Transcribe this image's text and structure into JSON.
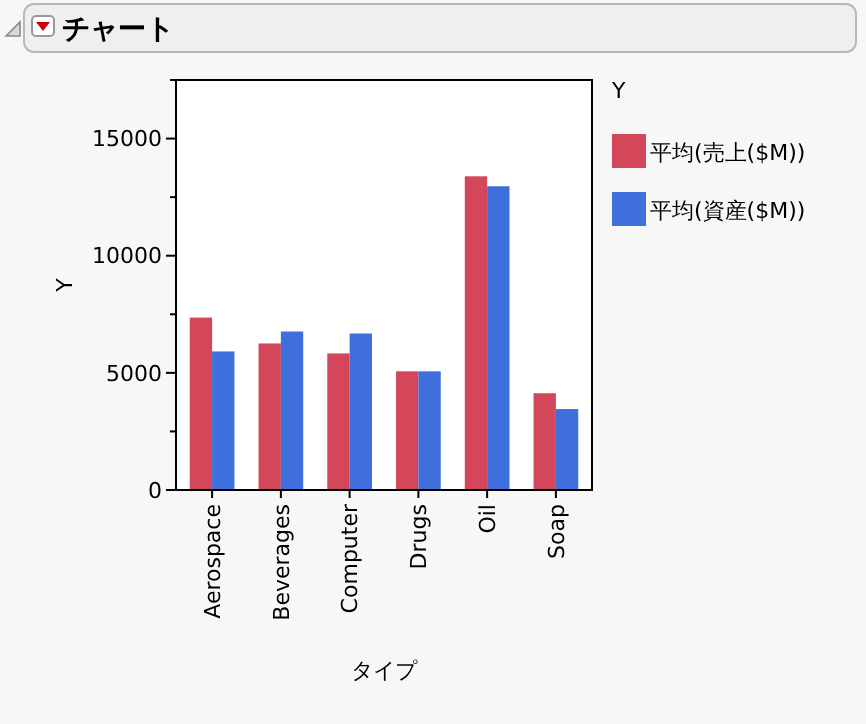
{
  "chart_data": {
    "type": "bar",
    "title": "チャート",
    "xlabel": "タイプ",
    "ylabel": "Y",
    "legend_title": "Y",
    "legend": "right",
    "grid": false,
    "categories": [
      "Aerospace",
      "Beverages",
      "Computer",
      "Drugs",
      "Oil",
      "Soap"
    ],
    "series": [
      {
        "name": "平均(売上($M))",
        "color": "#d4475a",
        "values": [
          7360,
          6255,
          5830,
          5065,
          13390,
          4130
        ]
      },
      {
        "name": "平均(資産($M))",
        "color": "#3f6fdb",
        "values": [
          5915,
          6765,
          6680,
          5065,
          12965,
          3455
        ]
      }
    ],
    "ylim": [
      0,
      17500
    ],
    "yticks": [
      0,
      {
        "value": 2500,
        "label": null
      },
      5000,
      {
        "value": 7500,
        "label": null
      },
      10000,
      {
        "value": 12500,
        "label": null
      },
      15000,
      {
        "value": 17500,
        "label": null
      }
    ]
  }
}
